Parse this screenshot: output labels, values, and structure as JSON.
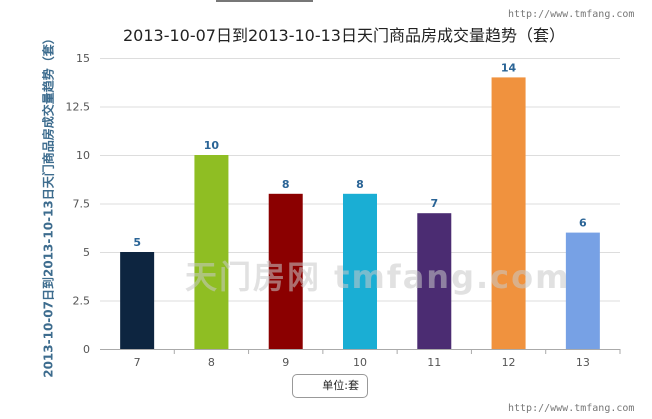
{
  "header": {
    "url_top": "http://www.tmfang.com",
    "url_bottom": "http://www.tmfang.com"
  },
  "watermark": "天门房网 tmfang.com",
  "chart_data": {
    "type": "bar",
    "title": "2013-10-07日到2013-10-13日天门商品房成交量趋势（套）",
    "xlabel": "",
    "ylabel": "2013-10-07日到2013-10-13日天门商品房成交量趋势（套）",
    "categories": [
      "7",
      "8",
      "9",
      "10",
      "11",
      "12",
      "13"
    ],
    "values": [
      5,
      10,
      8,
      8,
      7,
      14,
      6
    ],
    "colors": [
      "#0d2540",
      "#8fbe23",
      "#8b0000",
      "#1aaed4",
      "#4b2c72",
      "#f0923e",
      "#77a1e5"
    ],
    "ylim": [
      0,
      15
    ],
    "yticks": [
      "0",
      "2.5",
      "5",
      "7.5",
      "10",
      "12.5",
      "15"
    ],
    "ytick_values": [
      0,
      2.5,
      5,
      7.5,
      10,
      12.5,
      15
    ],
    "grid": true,
    "legend": {
      "label": "单位:套",
      "placement": "bottom-center"
    }
  }
}
